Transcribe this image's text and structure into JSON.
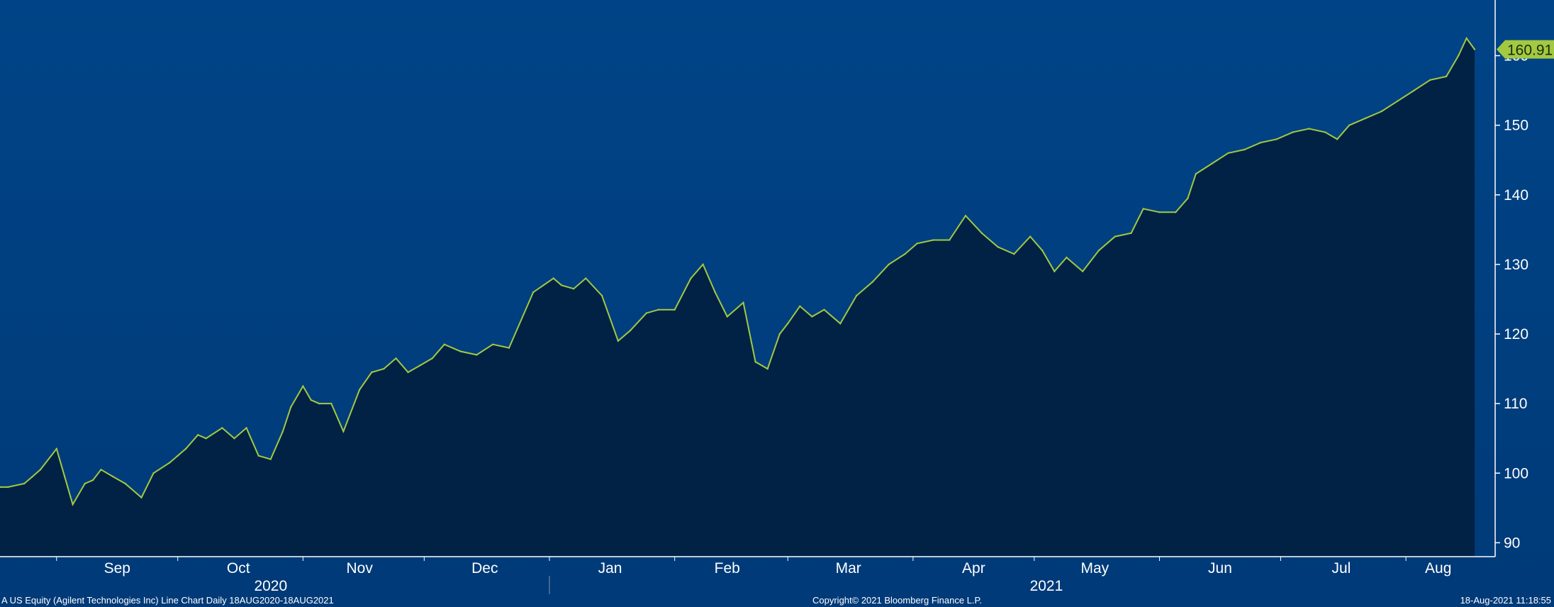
{
  "chart_data": {
    "type": "area",
    "title": "",
    "ylim": [
      88,
      168
    ],
    "yticks": [
      90,
      100,
      110,
      120,
      130,
      140,
      150,
      160
    ],
    "last_value": "160.91",
    "x_start": "2020-08-18",
    "x_end": "2021-08-18",
    "month_labels": [
      {
        "label": "Sep",
        "date": "2020-09-16"
      },
      {
        "label": "Oct",
        "date": "2020-10-16"
      },
      {
        "label": "Nov",
        "date": "2020-11-15"
      },
      {
        "label": "Dec",
        "date": "2020-12-16"
      },
      {
        "label": "Jan",
        "date": "2021-01-16"
      },
      {
        "label": "Feb",
        "date": "2021-02-14"
      },
      {
        "label": "Mar",
        "date": "2021-03-16"
      },
      {
        "label": "Apr",
        "date": "2021-04-16"
      },
      {
        "label": "May",
        "date": "2021-05-16"
      },
      {
        "label": "Jun",
        "date": "2021-06-16"
      },
      {
        "label": "Jul",
        "date": "2021-07-16"
      },
      {
        "label": "Aug",
        "date": "2021-08-09"
      }
    ],
    "year_labels": [
      {
        "label": "2020",
        "date": "2020-10-24"
      },
      {
        "label": "2021",
        "date": "2021-05-04"
      }
    ],
    "series": [
      {
        "x": [
          "2020-08-18",
          "2020-08-20",
          "2020-08-24",
          "2020-08-26",
          "2020-08-28",
          "2020-09-01",
          "2020-09-03",
          "2020-09-05",
          "2020-09-08",
          "2020-09-10",
          "2020-09-12",
          "2020-09-15",
          "2020-09-18",
          "2020-09-22",
          "2020-09-25",
          "2020-09-29",
          "2020-10-01",
          "2020-10-03",
          "2020-10-06",
          "2020-10-08",
          "2020-10-12",
          "2020-10-15",
          "2020-10-18",
          "2020-10-21",
          "2020-10-24",
          "2020-10-27",
          "2020-10-29",
          "2020-11-01",
          "2020-11-03",
          "2020-11-05",
          "2020-11-08",
          "2020-11-11",
          "2020-11-15",
          "2020-11-18",
          "2020-11-21",
          "2020-11-24",
          "2020-11-27",
          "2020-11-30",
          "2020-12-03",
          "2020-12-06",
          "2020-12-10",
          "2020-12-14",
          "2020-12-18",
          "2020-12-22",
          "2020-12-28",
          "2021-01-02",
          "2021-01-04",
          "2021-01-07",
          "2021-01-10",
          "2021-01-14",
          "2021-01-18",
          "2021-01-21",
          "2021-01-25",
          "2021-01-28",
          "2021-02-01",
          "2021-02-05",
          "2021-02-08",
          "2021-02-11",
          "2021-02-14",
          "2021-02-18",
          "2021-02-21",
          "2021-02-24",
          "2021-02-27",
          "2021-03-01",
          "2021-03-04",
          "2021-03-07",
          "2021-03-10",
          "2021-03-14",
          "2021-03-18",
          "2021-03-22",
          "2021-03-26",
          "2021-03-30",
          "2021-04-02",
          "2021-04-06",
          "2021-04-10",
          "2021-04-14",
          "2021-04-18",
          "2021-04-22",
          "2021-04-26",
          "2021-04-30",
          "2021-05-03",
          "2021-05-06",
          "2021-05-09",
          "2021-05-13",
          "2021-05-17",
          "2021-05-21",
          "2021-05-25",
          "2021-05-28",
          "2021-06-01",
          "2021-06-05",
          "2021-06-08",
          "2021-06-10",
          "2021-06-14",
          "2021-06-18",
          "2021-06-22",
          "2021-06-26",
          "2021-06-30",
          "2021-07-04",
          "2021-07-08",
          "2021-07-12",
          "2021-07-15",
          "2021-07-18",
          "2021-07-22",
          "2021-07-26",
          "2021-07-30",
          "2021-08-03",
          "2021-08-07",
          "2021-08-11",
          "2021-08-14",
          "2021-08-16",
          "2021-08-18"
        ],
        "values": [
          98.0,
          98.0,
          98.5,
          99.5,
          100.5,
          103.5,
          99.5,
          95.5,
          98.5,
          99.0,
          100.5,
          99.5,
          98.5,
          96.5,
          100.0,
          101.5,
          102.5,
          103.5,
          105.5,
          105.0,
          106.5,
          105.0,
          106.5,
          102.5,
          102.0,
          106.0,
          109.5,
          112.5,
          110.5,
          110.0,
          110.0,
          106.0,
          112.0,
          114.5,
          115.0,
          116.5,
          114.5,
          115.5,
          116.5,
          118.5,
          117.5,
          117.0,
          118.5,
          118.0,
          126.0,
          128.0,
          127.0,
          126.5,
          128.0,
          125.5,
          119.0,
          120.5,
          123.0,
          123.5,
          123.5,
          128.0,
          130.0,
          126.0,
          122.5,
          124.5,
          116.0,
          115.0,
          120.0,
          121.5,
          124.0,
          122.5,
          123.5,
          121.5,
          125.5,
          127.5,
          130.0,
          131.5,
          133.0,
          133.5,
          133.5,
          137.0,
          134.5,
          132.5,
          131.5,
          134.0,
          132.0,
          129.0,
          131.0,
          129.0,
          132.0,
          134.0,
          134.5,
          138.0,
          137.5,
          137.5,
          139.5,
          143.0,
          144.5,
          146.0,
          146.5,
          147.5,
          148.0,
          149.0,
          149.5,
          149.0,
          148.0,
          150.0,
          151.0,
          152.0,
          153.5,
          155.0,
          156.5,
          157.0,
          160.0,
          162.5,
          160.91
        ]
      }
    ]
  },
  "footer": {
    "left": "A US Equity (Agilent Technologies Inc) Line Chart  Daily 18AUG2020-18AUG2021",
    "center": "Copyright© 2021 Bloomberg Finance L.P.",
    "right": "18-Aug-2021 11:18:55"
  },
  "colors": {
    "line": "#a3c940",
    "area": "#012245",
    "bg_top": "#004487",
    "bg_bottom": "#003a78",
    "label_bg": "#a3c940"
  }
}
